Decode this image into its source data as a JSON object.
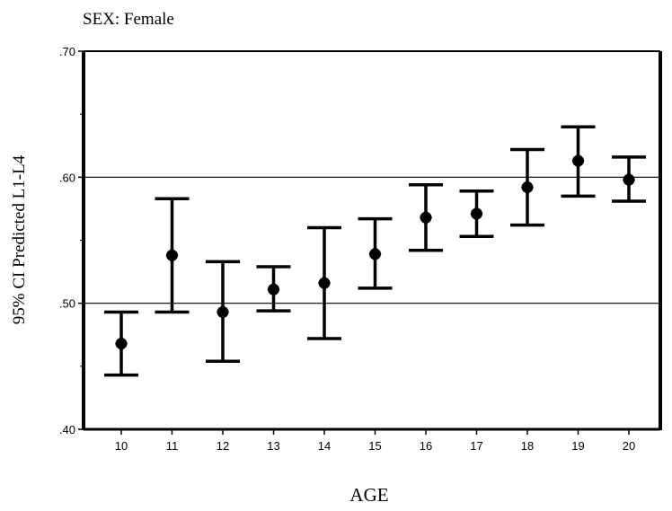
{
  "chart_data": {
    "type": "error_bar",
    "title": "SEX: Female",
    "xlabel": "AGE",
    "ylabel": "95% CI Predicted L1-L4",
    "ylim": [
      0.4,
      0.7
    ],
    "y_ticks": [
      ".40",
      ".50",
      ".60",
      ".70"
    ],
    "gridlines_y": [
      0.5,
      0.6
    ],
    "grid": "horizontal at .50 and .60",
    "categories": [
      "10",
      "11",
      "12",
      "13",
      "14",
      "15",
      "16",
      "17",
      "18",
      "19",
      "20"
    ],
    "mean": [
      0.468,
      0.538,
      0.493,
      0.511,
      0.516,
      0.539,
      0.568,
      0.571,
      0.592,
      0.613,
      0.598
    ],
    "lower": [
      0.443,
      0.493,
      0.454,
      0.494,
      0.472,
      0.512,
      0.542,
      0.553,
      0.562,
      0.585,
      0.581
    ],
    "upper": [
      0.493,
      0.583,
      0.533,
      0.529,
      0.56,
      0.567,
      0.594,
      0.589,
      0.622,
      0.64,
      0.616
    ]
  }
}
